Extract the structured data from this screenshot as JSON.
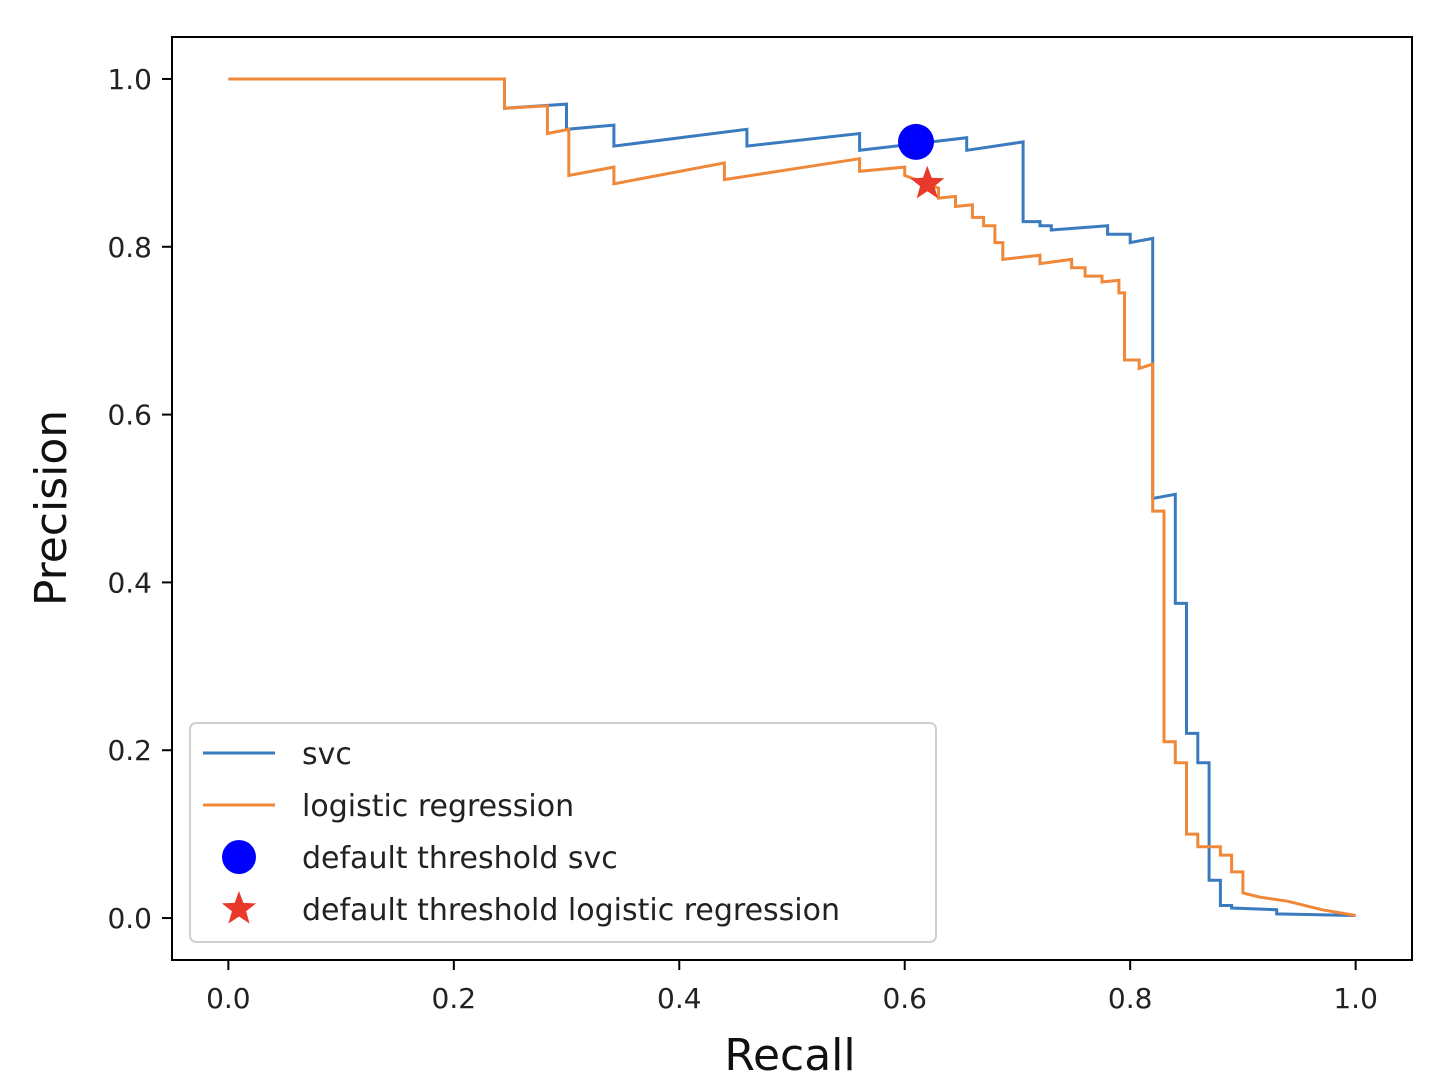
{
  "chart_data": {
    "type": "line",
    "title": "",
    "xlabel": "Recall",
    "ylabel": "Precision",
    "xlim": [
      -0.05,
      1.05
    ],
    "ylim": [
      -0.05,
      1.05
    ],
    "xticks": [
      "0.0",
      "0.2",
      "0.4",
      "0.6",
      "0.8",
      "1.0"
    ],
    "yticks": [
      "0.0",
      "0.2",
      "0.4",
      "0.6",
      "0.8",
      "1.0"
    ],
    "grid": false,
    "legend_position": "lower-left",
    "series": [
      {
        "name": "svc",
        "color": "#3a7bbf",
        "points": [
          [
            0.0,
            1.0
          ],
          [
            0.245,
            1.0
          ],
          [
            0.245,
            0.965
          ],
          [
            0.3,
            0.97
          ],
          [
            0.3,
            0.94
          ],
          [
            0.342,
            0.945
          ],
          [
            0.342,
            0.92
          ],
          [
            0.46,
            0.94
          ],
          [
            0.46,
            0.92
          ],
          [
            0.56,
            0.935
          ],
          [
            0.56,
            0.915
          ],
          [
            0.655,
            0.93
          ],
          [
            0.655,
            0.915
          ],
          [
            0.705,
            0.925
          ],
          [
            0.705,
            0.83
          ],
          [
            0.72,
            0.83
          ],
          [
            0.72,
            0.825
          ],
          [
            0.73,
            0.825
          ],
          [
            0.73,
            0.82
          ],
          [
            0.78,
            0.825
          ],
          [
            0.78,
            0.815
          ],
          [
            0.8,
            0.815
          ],
          [
            0.8,
            0.805
          ],
          [
            0.82,
            0.81
          ],
          [
            0.82,
            0.5
          ],
          [
            0.84,
            0.505
          ],
          [
            0.84,
            0.375
          ],
          [
            0.85,
            0.375
          ],
          [
            0.85,
            0.22
          ],
          [
            0.86,
            0.22
          ],
          [
            0.86,
            0.185
          ],
          [
            0.87,
            0.185
          ],
          [
            0.87,
            0.045
          ],
          [
            0.88,
            0.045
          ],
          [
            0.88,
            0.015
          ],
          [
            0.89,
            0.015
          ],
          [
            0.89,
            0.012
          ],
          [
            0.93,
            0.01
          ],
          [
            0.93,
            0.005
          ],
          [
            1.0,
            0.003
          ]
        ]
      },
      {
        "name": "logistic regression",
        "color": "#f0883a",
        "points": [
          [
            0.0,
            1.0
          ],
          [
            0.245,
            1.0
          ],
          [
            0.245,
            0.965
          ],
          [
            0.283,
            0.968
          ],
          [
            0.283,
            0.935
          ],
          [
            0.302,
            0.94
          ],
          [
            0.302,
            0.885
          ],
          [
            0.342,
            0.895
          ],
          [
            0.342,
            0.875
          ],
          [
            0.44,
            0.9
          ],
          [
            0.44,
            0.88
          ],
          [
            0.56,
            0.905
          ],
          [
            0.56,
            0.89
          ],
          [
            0.6,
            0.895
          ],
          [
            0.6,
            0.885
          ],
          [
            0.63,
            0.87
          ],
          [
            0.63,
            0.858
          ],
          [
            0.645,
            0.86
          ],
          [
            0.645,
            0.848
          ],
          [
            0.66,
            0.85
          ],
          [
            0.66,
            0.835
          ],
          [
            0.67,
            0.835
          ],
          [
            0.67,
            0.825
          ],
          [
            0.68,
            0.825
          ],
          [
            0.68,
            0.805
          ],
          [
            0.687,
            0.805
          ],
          [
            0.687,
            0.785
          ],
          [
            0.72,
            0.79
          ],
          [
            0.72,
            0.78
          ],
          [
            0.748,
            0.785
          ],
          [
            0.748,
            0.775
          ],
          [
            0.76,
            0.775
          ],
          [
            0.76,
            0.765
          ],
          [
            0.775,
            0.765
          ],
          [
            0.775,
            0.758
          ],
          [
            0.79,
            0.76
          ],
          [
            0.79,
            0.745
          ],
          [
            0.795,
            0.745
          ],
          [
            0.795,
            0.665
          ],
          [
            0.808,
            0.665
          ],
          [
            0.808,
            0.655
          ],
          [
            0.82,
            0.66
          ],
          [
            0.82,
            0.485
          ],
          [
            0.83,
            0.485
          ],
          [
            0.83,
            0.21
          ],
          [
            0.84,
            0.21
          ],
          [
            0.84,
            0.185
          ],
          [
            0.85,
            0.185
          ],
          [
            0.85,
            0.1
          ],
          [
            0.86,
            0.1
          ],
          [
            0.86,
            0.085
          ],
          [
            0.88,
            0.085
          ],
          [
            0.88,
            0.075
          ],
          [
            0.89,
            0.075
          ],
          [
            0.89,
            0.055
          ],
          [
            0.9,
            0.055
          ],
          [
            0.9,
            0.03
          ],
          [
            0.915,
            0.025
          ],
          [
            0.94,
            0.02
          ],
          [
            0.97,
            0.01
          ],
          [
            1.0,
            0.003
          ]
        ]
      }
    ],
    "markers": [
      {
        "name": "default threshold svc",
        "shape": "circle",
        "color": "#0000ff",
        "x": 0.61,
        "y": 0.925
      },
      {
        "name": "default threshold logistic regression",
        "shape": "star",
        "color": "#e8392b",
        "x": 0.62,
        "y": 0.875
      }
    ]
  }
}
